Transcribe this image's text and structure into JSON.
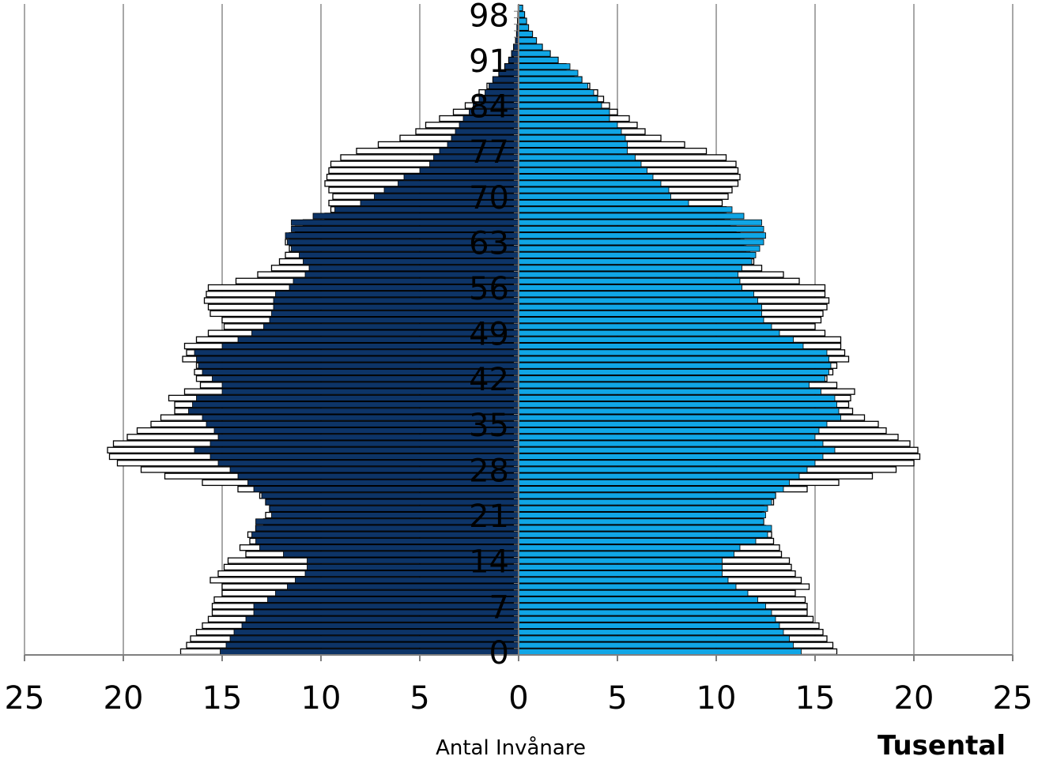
{
  "chart_data": {
    "type": "bar",
    "subtype": "population-pyramid",
    "xlabel": "Antal Invånare",
    "unit_label": "Tusental",
    "xlim": [
      -25,
      25
    ],
    "x_ticks": [
      "25",
      "20",
      "15",
      "10",
      "5",
      "0",
      "5",
      "10",
      "15",
      "20",
      "25"
    ],
    "age_ticks": [
      "0",
      "7",
      "14",
      "21",
      "28",
      "35",
      "42",
      "49",
      "56",
      "63",
      "70",
      "77",
      "84",
      "91",
      "98"
    ],
    "ages": [
      0,
      1,
      2,
      3,
      4,
      5,
      6,
      7,
      8,
      9,
      10,
      11,
      12,
      13,
      14,
      15,
      16,
      17,
      18,
      19,
      20,
      21,
      22,
      23,
      24,
      25,
      26,
      27,
      28,
      29,
      30,
      31,
      32,
      33,
      34,
      35,
      36,
      37,
      38,
      39,
      40,
      41,
      42,
      43,
      44,
      45,
      46,
      47,
      48,
      49,
      50,
      51,
      52,
      53,
      54,
      55,
      56,
      57,
      58,
      59,
      60,
      61,
      62,
      63,
      64,
      65,
      66,
      67,
      68,
      69,
      70,
      71,
      72,
      73,
      74,
      75,
      76,
      77,
      78,
      79,
      80,
      81,
      82,
      83,
      84,
      85,
      86,
      87,
      88,
      89,
      90,
      91,
      92,
      93,
      94,
      95,
      96,
      97,
      98,
      99
    ],
    "series": [
      {
        "group": "men-filled",
        "values": [
          15.1,
          14.8,
          14.6,
          14.4,
          14.0,
          13.8,
          13.4,
          13.4,
          12.7,
          12.3,
          11.7,
          11.3,
          10.8,
          10.7,
          10.7,
          11.9,
          13.1,
          13.3,
          13.5,
          13.3,
          13.3,
          12.5,
          12.6,
          12.8,
          13.0,
          13.4,
          13.7,
          14.2,
          14.6,
          15.2,
          15.6,
          16.4,
          15.6,
          15.2,
          15.4,
          15.8,
          16.0,
          16.7,
          16.5,
          16.3,
          15.0,
          15.0,
          15.5,
          16.0,
          16.2,
          16.3,
          16.4,
          15.0,
          14.2,
          13.5,
          12.9,
          12.6,
          12.5,
          12.4,
          12.4,
          12.3,
          11.6,
          11.4,
          10.8,
          10.6,
          10.9,
          11.1,
          11.5,
          11.7,
          11.8,
          11.5,
          11.5,
          10.4,
          9.3,
          8.0,
          7.3,
          6.8,
          6.1,
          5.8,
          5.0,
          4.5,
          4.3,
          4.0,
          3.6,
          3.4,
          3.2,
          3.0,
          2.8,
          2.5,
          2.3,
          2.0,
          1.7,
          1.5,
          1.3,
          1.0,
          0.7,
          0.5,
          0.35,
          0.25,
          0.15,
          0.1,
          0.08,
          0.05,
          0.03,
          0.02
        ]
      },
      {
        "group": "men-total",
        "values": [
          17.1,
          16.8,
          16.6,
          16.3,
          16.0,
          15.7,
          15.5,
          15.5,
          15.4,
          15.0,
          15.0,
          15.6,
          15.2,
          14.9,
          14.7,
          13.8,
          14.1,
          13.6,
          13.7,
          13.3,
          12.9,
          12.8,
          12.6,
          12.8,
          13.1,
          14.2,
          16.0,
          17.9,
          19.1,
          20.3,
          20.7,
          20.8,
          20.5,
          19.8,
          19.3,
          18.6,
          18.1,
          17.4,
          17.4,
          17.7,
          16.9,
          16.1,
          16.3,
          16.4,
          16.3,
          17.0,
          16.8,
          16.9,
          16.3,
          15.7,
          14.9,
          15.0,
          15.6,
          15.7,
          15.9,
          15.8,
          15.7,
          14.3,
          13.2,
          12.5,
          12.1,
          11.8,
          11.6,
          11.8,
          11.6,
          11.3,
          10.9,
          9.8,
          9.5,
          9.6,
          9.4,
          9.6,
          9.8,
          9.7,
          9.6,
          9.5,
          9.0,
          8.2,
          7.1,
          6.0,
          5.2,
          4.7,
          4.0,
          3.3,
          2.7,
          2.3,
          2.0,
          1.6,
          1.3,
          1.0,
          0.7,
          0.5,
          0.35,
          0.25,
          0.15,
          0.1,
          0.08,
          0.05,
          0.03,
          0.02
        ]
      },
      {
        "group": "women-filled",
        "values": [
          14.3,
          13.9,
          13.7,
          13.4,
          13.2,
          13.0,
          12.8,
          12.5,
          12.1,
          11.6,
          11.0,
          10.6,
          10.3,
          10.3,
          10.3,
          10.9,
          11.2,
          12.0,
          12.6,
          12.8,
          12.4,
          12.5,
          12.6,
          12.8,
          13.0,
          13.4,
          13.7,
          14.2,
          14.6,
          15.0,
          15.4,
          16.0,
          15.4,
          15.0,
          15.2,
          15.6,
          16.3,
          16.2,
          16.1,
          16.0,
          15.3,
          14.7,
          15.5,
          15.7,
          15.8,
          15.7,
          15.6,
          14.4,
          13.9,
          13.2,
          12.8,
          12.4,
          12.3,
          12.3,
          12.1,
          11.9,
          11.3,
          11.2,
          11.1,
          11.3,
          11.8,
          12.0,
          12.2,
          12.4,
          12.5,
          12.4,
          12.3,
          11.4,
          10.8,
          8.6,
          7.7,
          7.6,
          7.2,
          6.8,
          6.5,
          6.2,
          5.9,
          5.5,
          5.5,
          5.4,
          5.2,
          5.0,
          4.6,
          4.6,
          4.2,
          4.0,
          3.8,
          3.5,
          3.2,
          3.0,
          2.6,
          2.0,
          1.6,
          1.2,
          0.9,
          0.7,
          0.5,
          0.4,
          0.3,
          0.2
        ]
      },
      {
        "group": "women-total",
        "values": [
          16.1,
          15.9,
          15.6,
          15.4,
          15.2,
          14.9,
          14.6,
          14.6,
          14.5,
          14.0,
          14.7,
          14.3,
          14.0,
          13.8,
          13.7,
          13.3,
          13.2,
          12.9,
          12.8,
          12.5,
          12.4,
          12.3,
          12.4,
          12.9,
          13.0,
          14.6,
          16.2,
          17.9,
          19.1,
          20.0,
          20.3,
          20.2,
          19.8,
          19.2,
          18.6,
          18.2,
          17.5,
          16.9,
          16.7,
          16.8,
          17.0,
          16.1,
          15.6,
          15.9,
          16.1,
          16.7,
          16.5,
          16.3,
          16.3,
          15.5,
          15.0,
          15.3,
          15.4,
          15.6,
          15.7,
          15.5,
          15.5,
          14.2,
          13.4,
          12.3,
          11.9,
          11.7,
          11.5,
          11.4,
          11.2,
          11.0,
          10.7,
          10.4,
          10.5,
          10.3,
          10.6,
          10.8,
          11.1,
          11.2,
          11.1,
          11.0,
          10.5,
          9.5,
          8.4,
          7.2,
          6.4,
          6.0,
          5.6,
          5.0,
          4.6,
          4.3,
          4.0,
          3.6,
          3.2,
          2.8,
          2.4,
          2.0,
          1.6,
          1.2,
          0.9,
          0.7,
          0.5,
          0.4,
          0.3,
          0.2
        ]
      }
    ],
    "colors": {
      "men_fill": "#0d3467",
      "women_fill": "#10a6e6",
      "outline": "#000000",
      "outline_fill": "#ffffff",
      "grid": "#8c8c8c",
      "axis": "#7f7f7f"
    },
    "grid": true
  }
}
